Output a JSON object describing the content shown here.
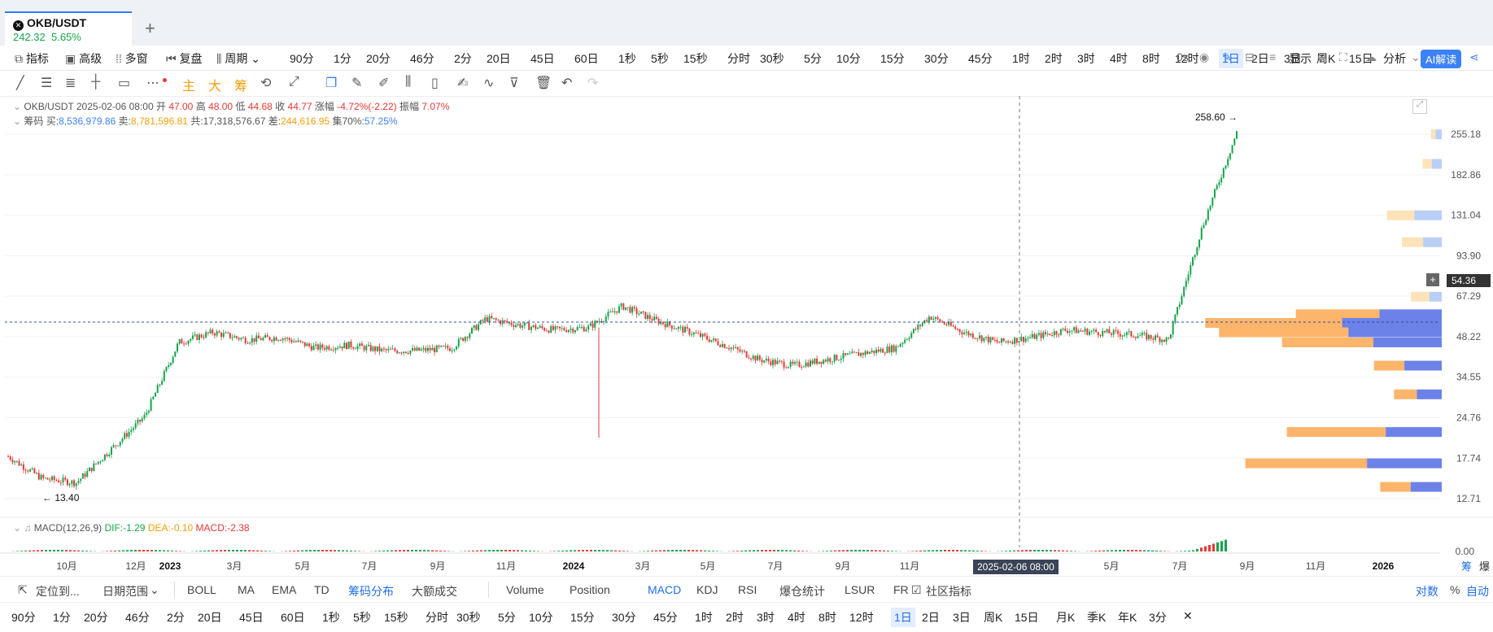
{
  "tab": {
    "pair": "OKB/USDT",
    "price": "242.32",
    "change": "5.65%",
    "add": "+"
  },
  "toolbar": {
    "left": [
      "指标",
      "高级",
      "多窗",
      "复盘",
      "周期"
    ],
    "periods": [
      "90分",
      "1分",
      "20分",
      "46分",
      "2分",
      "20日",
      "45日",
      "60日",
      "1秒",
      "5秒",
      "15秒",
      "分时",
      "30秒",
      "5分",
      "10分",
      "15分",
      "30分",
      "45分",
      "1时",
      "2时",
      "3时",
      "4时",
      "8时",
      "12时",
      "1日",
      "2日",
      "3日",
      "周K",
      "15日"
    ],
    "active_period": "1日",
    "right": {
      "countdown": "0s",
      "display": "显示",
      "analysis": "分析",
      "ai": "AI解读"
    }
  },
  "draw_tools": {
    "labels": [
      "主",
      "大",
      "筹"
    ]
  },
  "legend": {
    "line1": {
      "pair": "OKB/USDT",
      "date": "2025-02-06 08:00",
      "open_label": "开",
      "open": "47.00",
      "high_label": "高",
      "high": "48.00",
      "low_label": "低",
      "low": "44.68",
      "close_label": "收",
      "close": "44.77",
      "chg_label": "涨幅",
      "chg": "-4.72%(-2.22)",
      "amp_label": "振幅",
      "amp": "7.07%"
    },
    "line2": {
      "name": "筹码",
      "buy_label": "买:",
      "buy": "8,536,979.86",
      "sell_label": "卖:",
      "sell": "8,781,596.81",
      "total_label": "共:",
      "total": "17,318,576.67",
      "diff_label": "差:",
      "diff": "244,616.95",
      "conc_label": "集70%:",
      "conc": "57.25%"
    }
  },
  "macd": {
    "name": "MACD(12,26,9)",
    "dif": "DIF:-1.29",
    "dea": "DEA:-0.10",
    "macd": "MACD:-2.38"
  },
  "price_axis": [
    "255.18",
    "182.86",
    "131.04",
    "93.90",
    "67.29",
    "48.22",
    "34.55",
    "24.76",
    "17.74",
    "12.71"
  ],
  "current_price": "54.36",
  "macd_axis": "0.00",
  "annotations": {
    "max": "258.60 →",
    "min": "← 13.40"
  },
  "time_axis": [
    {
      "label": "10月",
      "bold": false
    },
    {
      "label": "12月",
      "bold": false
    },
    {
      "label": "2023",
      "bold": true
    },
    {
      "label": "3月",
      "bold": false
    },
    {
      "label": "5月",
      "bold": false
    },
    {
      "label": "7月",
      "bold": false
    },
    {
      "label": "9月",
      "bold": false
    },
    {
      "label": "11月",
      "bold": false
    },
    {
      "label": "2024",
      "bold": true
    },
    {
      "label": "3月",
      "bold": false
    },
    {
      "label": "5月",
      "bold": false
    },
    {
      "label": "7月",
      "bold": false
    },
    {
      "label": "9月",
      "bold": false
    },
    {
      "label": "11月",
      "bold": false
    },
    {
      "label": "5月",
      "bold": false
    },
    {
      "label": "7月",
      "bold": false
    },
    {
      "label": "9月",
      "bold": false
    },
    {
      "label": "11月",
      "bold": false
    },
    {
      "label": "2026",
      "bold": true
    }
  ],
  "crosshair_date": "2025-02-06 08:00",
  "axis_right": {
    "chips": "筹",
    "liq": "爆"
  },
  "bottom1": {
    "goto": "定位到...",
    "range": "日期范围",
    "indicators": [
      "BOLL",
      "MA",
      "EMA",
      "TD",
      "筹码分布",
      "大额成交"
    ],
    "active_indicator": "筹码分布",
    "sub": [
      "Volume",
      "Position",
      "MACD",
      "KDJ",
      "RSI",
      "爆仓统计",
      "LSUR",
      "FR"
    ],
    "active_sub": "MACD",
    "community": "社区指标",
    "scale": [
      "对数",
      "%",
      "自动"
    ]
  },
  "bottom2": {
    "periods": [
      "90分",
      "1分",
      "20分",
      "46分",
      "2分",
      "20日",
      "45日",
      "60日",
      "1秒",
      "5秒",
      "15秒",
      "分时",
      "30秒",
      "5分",
      "10分",
      "15分",
      "30分",
      "45分",
      "1时",
      "2时",
      "3时",
      "4时",
      "8时",
      "12时",
      "1日",
      "2日",
      "3日",
      "周K",
      "15日",
      "月K",
      "季K",
      "年K",
      "3分"
    ],
    "active": "1日",
    "close": "✕"
  },
  "colors": {
    "up": "#16a34a",
    "down": "#e53935",
    "accent": "#1f6fe5",
    "chip_orange": "#fdb56b",
    "chip_blue": "#6c82e8"
  },
  "chart_data": {
    "type": "candlestick",
    "pair": "OKB/USDT",
    "interval": "1日",
    "yscale": "log",
    "ylim": [
      11.5,
      290
    ],
    "max_marker": 258.6,
    "min_marker": 13.4,
    "current_price": 54.36,
    "series_close_path": [
      {
        "t": "2022-09",
        "v": 18
      },
      {
        "t": "2022-10",
        "v": 15
      },
      {
        "t": "2022-11",
        "v": 14.5
      },
      {
        "t": "2022-12",
        "v": 19
      },
      {
        "t": "2023-01",
        "v": 25
      },
      {
        "t": "2023-02",
        "v": 46
      },
      {
        "t": "2023-03",
        "v": 50
      },
      {
        "t": "2023-04",
        "v": 47
      },
      {
        "t": "2023-05",
        "v": 48
      },
      {
        "t": "2023-06",
        "v": 44
      },
      {
        "t": "2023-07",
        "v": 45
      },
      {
        "t": "2023-08",
        "v": 43
      },
      {
        "t": "2023-09",
        "v": 43
      },
      {
        "t": "2023-10",
        "v": 44
      },
      {
        "t": "2023-11",
        "v": 56
      },
      {
        "t": "2023-12",
        "v": 53
      },
      {
        "t": "2024-01",
        "v": 51
      },
      {
        "t": "2024-02",
        "v": 52
      },
      {
        "t": "2024-03",
        "v": 62
      },
      {
        "t": "2024-04",
        "v": 55
      },
      {
        "t": "2024-05",
        "v": 50
      },
      {
        "t": "2024-06",
        "v": 45
      },
      {
        "t": "2024-07",
        "v": 40
      },
      {
        "t": "2024-08",
        "v": 38
      },
      {
        "t": "2024-09",
        "v": 40
      },
      {
        "t": "2024-10",
        "v": 42
      },
      {
        "t": "2024-11",
        "v": 44
      },
      {
        "t": "2024-12",
        "v": 57
      },
      {
        "t": "2025-01",
        "v": 50
      },
      {
        "t": "2025-02",
        "v": 46
      },
      {
        "t": "2025-03",
        "v": 48
      },
      {
        "t": "2025-04",
        "v": 51
      },
      {
        "t": "2025-05",
        "v": 50
      },
      {
        "t": "2025-06",
        "v": 49
      },
      {
        "t": "2025-07",
        "v": 47
      },
      {
        "t": "2025-08",
        "v": 120
      },
      {
        "t": "2025-08b",
        "v": 258.6
      }
    ],
    "chip_distribution": [
      {
        "price": 255,
        "buy": 0.05,
        "sell": 0.03
      },
      {
        "price": 200,
        "buy": 0.08,
        "sell": 0.06
      },
      {
        "price": 131,
        "buy": 0.22,
        "sell": 0.18
      },
      {
        "price": 105,
        "buy": 0.15,
        "sell": 0.14
      },
      {
        "price": 67,
        "buy": 0.1,
        "sell": 0.12
      },
      {
        "price": 58,
        "buy": 0.5,
        "sell": 0.55
      },
      {
        "price": 54,
        "buy": 0.8,
        "sell": 0.9
      },
      {
        "price": 50,
        "buy": 0.75,
        "sell": 0.85
      },
      {
        "price": 46,
        "buy": 0.55,
        "sell": 0.6
      },
      {
        "price": 38,
        "buy": 0.3,
        "sell": 0.2
      },
      {
        "price": 30,
        "buy": 0.2,
        "sell": 0.15
      },
      {
        "price": 22,
        "buy": 0.45,
        "sell": 0.65
      },
      {
        "price": 17,
        "buy": 0.6,
        "sell": 0.8
      },
      {
        "price": 14,
        "buy": 0.25,
        "sell": 0.2
      }
    ]
  }
}
